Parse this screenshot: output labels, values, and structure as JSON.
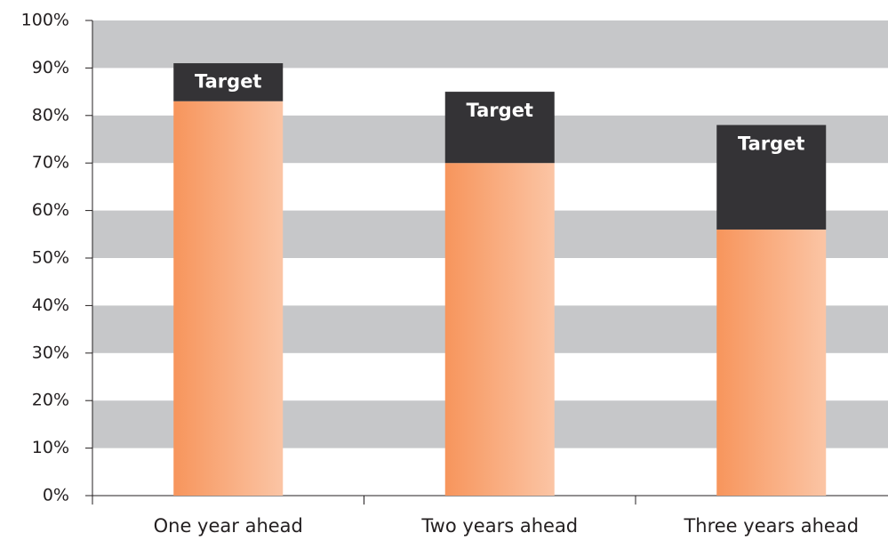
{
  "chart_data": {
    "type": "stacked_bar",
    "categories": [
      "One year ahead",
      "Two years ahead",
      "Three years ahead"
    ],
    "series": [
      {
        "color": "#f7955c",
        "values": [
          83,
          70,
          56
        ]
      },
      {
        "name": "Target",
        "color": "#343336",
        "values": [
          8,
          15,
          22
        ]
      }
    ],
    "ylim": [
      0,
      100
    ],
    "yticks": [
      {
        "value": 0,
        "label": "0%"
      },
      {
        "value": 10,
        "label": "10%"
      },
      {
        "value": 20,
        "label": "20%"
      },
      {
        "value": 30,
        "label": "30%"
      },
      {
        "value": 40,
        "label": "40%"
      },
      {
        "value": 50,
        "label": "50%"
      },
      {
        "value": 60,
        "label": "60%"
      },
      {
        "value": 70,
        "label": "70%"
      },
      {
        "value": 80,
        "label": "80%"
      },
      {
        "value": 90,
        "label": "90%"
      },
      {
        "value": 100,
        "label": "100%"
      }
    ],
    "grid": "alternating-bands",
    "band_color": "#c6c7c9"
  }
}
